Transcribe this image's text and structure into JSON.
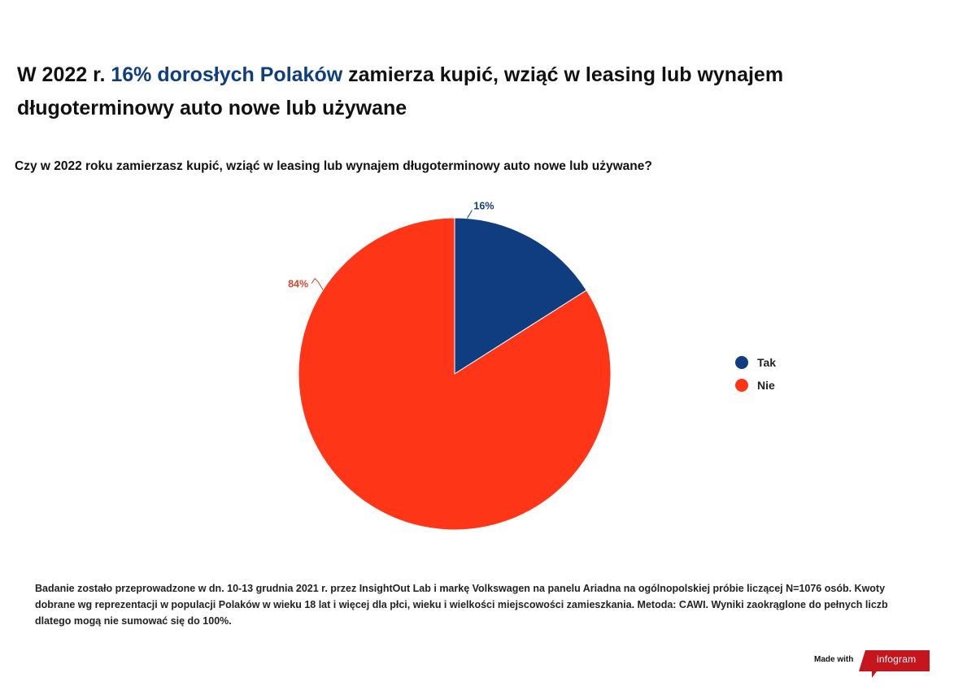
{
  "headline": {
    "part1": "W 2022 r. ",
    "highlight": "16% dorosłych Polaków",
    "part2": " zamierza kupić, wziąć w leasing lub wynajem długoterminowy auto nowe lub używane"
  },
  "question": "Czy w 2022 roku zamierzasz kupić, wziąć w leasing lub wynajem długoterminowy auto nowe lub używane?",
  "chart_data": {
    "type": "pie",
    "categories": [
      "Tak",
      "Nie"
    ],
    "values": [
      16,
      84
    ],
    "labels": [
      "16%",
      "84%"
    ],
    "colors": [
      "#0f3d80",
      "#ff3518"
    ],
    "legend_position": "right"
  },
  "legend": {
    "items": [
      {
        "label": "Tak",
        "color": "#0f3d80"
      },
      {
        "label": "Nie",
        "color": "#ff3518"
      }
    ]
  },
  "footnote": "Badanie zostało przeprowadzone w dn. 10-13 grudnia 2021 r. przez InsightOut Lab i markę Volkswagen na panelu Ariadna na ogólnopolskiej próbie liczącej N=1076 osób. Kwoty dobrane wg reprezentacji w populacji Polaków w wieku 18 lat i więcej dla płci, wieku i wielkości miejscowości zamieszkania. Metoda: CAWI. Wyniki zaokrąglone do pełnych liczb dlatego mogą nie sumować się do 100%.",
  "branding": {
    "made_with": "Made with",
    "brand": "infogram",
    "brand_color": "#c4161c"
  }
}
